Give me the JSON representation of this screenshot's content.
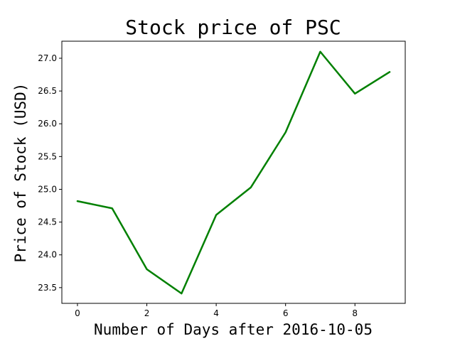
{
  "chart_data": {
    "type": "line",
    "title": "Stock price of PSC",
    "xlabel": "Number of Days after 2016-10-05",
    "ylabel": "Price of Stock (USD)",
    "x": [
      0,
      1,
      2,
      3,
      4,
      5,
      6,
      7,
      8,
      9
    ],
    "series": [
      {
        "values": [
          24.82,
          24.71,
          23.78,
          23.41,
          24.61,
          25.03,
          25.87,
          27.1,
          26.46,
          26.79
        ],
        "color": "#008000"
      }
    ],
    "xlim": [
      -0.45,
      9.45
    ],
    "ylim": [
      23.26,
      27.26
    ],
    "xticks": [
      0,
      2,
      4,
      6,
      8
    ],
    "xtick_labels": [
      "0",
      "2",
      "4",
      "6",
      "8"
    ],
    "yticks": [
      23.5,
      24.0,
      24.5,
      25.0,
      25.5,
      26.0,
      26.5,
      27.0
    ],
    "ytick_labels": [
      "23.5",
      "24.0",
      "24.5",
      "25.0",
      "25.5",
      "26.0",
      "26.5",
      "27.0"
    ],
    "grid": false,
    "legend": false
  }
}
